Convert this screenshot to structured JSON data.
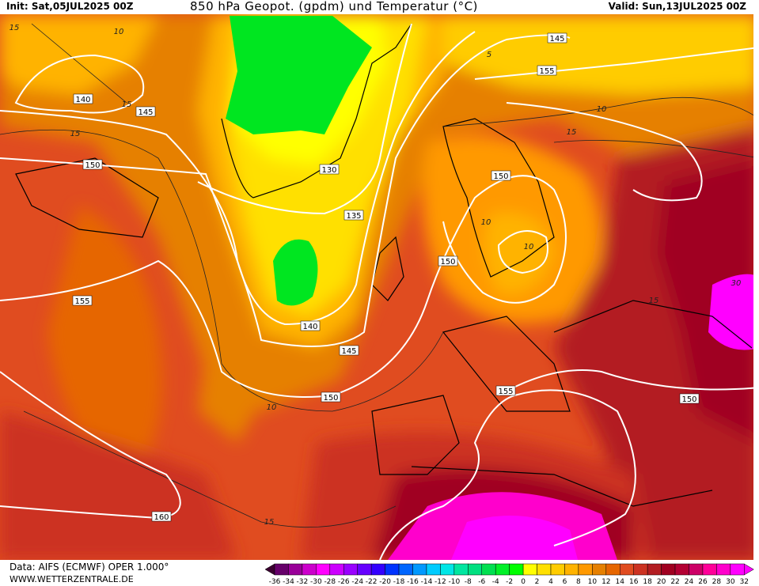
{
  "header": {
    "init": "Init: Sat,05JUL2025 00Z",
    "title": "850 hPa Geopot. (gpdm) und Temperatur (°C)",
    "valid": "Valid: Sun,13JUL2025 00Z"
  },
  "footer": {
    "data_source": "Data: AIFS (ECMWF) OPER 1.000°",
    "website": "WWW.WETTERZENTRALE.DE"
  },
  "map": {
    "geopotential_labels": [
      "140",
      "145",
      "150",
      "155",
      "130",
      "135",
      "150",
      "150",
      "155",
      "140",
      "145",
      "150",
      "155",
      "160",
      "150",
      "145"
    ],
    "temperature_labels": [
      "15",
      "10",
      "10",
      "15",
      "15",
      "15",
      "10",
      "10",
      "15",
      "15",
      "30",
      "10",
      "5"
    ],
    "isoline_color": "#ffffff"
  },
  "colorbar": {
    "ticks": [
      "-36",
      "-34",
      "-32",
      "-30",
      "-28",
      "-26",
      "-24",
      "-22",
      "-20",
      "-18",
      "-16",
      "-14",
      "-12",
      "-10",
      "-8",
      "-6",
      "-4",
      "-2",
      "0",
      "2",
      "4",
      "6",
      "8",
      "10",
      "12",
      "14",
      "16",
      "18",
      "20",
      "22",
      "24",
      "26",
      "28",
      "30",
      "32"
    ],
    "colors": [
      "#66006a",
      "#990099",
      "#cc00cc",
      "#ff00ff",
      "#cc00ff",
      "#9900ff",
      "#6600ff",
      "#3300ff",
      "#0033ff",
      "#0066ff",
      "#0099ff",
      "#00ccff",
      "#00e6e6",
      "#00e6a0",
      "#00e080",
      "#00e050",
      "#00f028",
      "#00ff00",
      "#ffff00",
      "#ffe000",
      "#ffcc00",
      "#ffb300",
      "#ff9900",
      "#e68000",
      "#e66600",
      "#e04c20",
      "#cc3322",
      "#b31e22",
      "#a00020",
      "#b30033",
      "#cc0066",
      "#ff0099",
      "#ff00cc",
      "#ff00ff"
    ],
    "under_color": "#3a0030",
    "over_color": "#ff00ff"
  }
}
